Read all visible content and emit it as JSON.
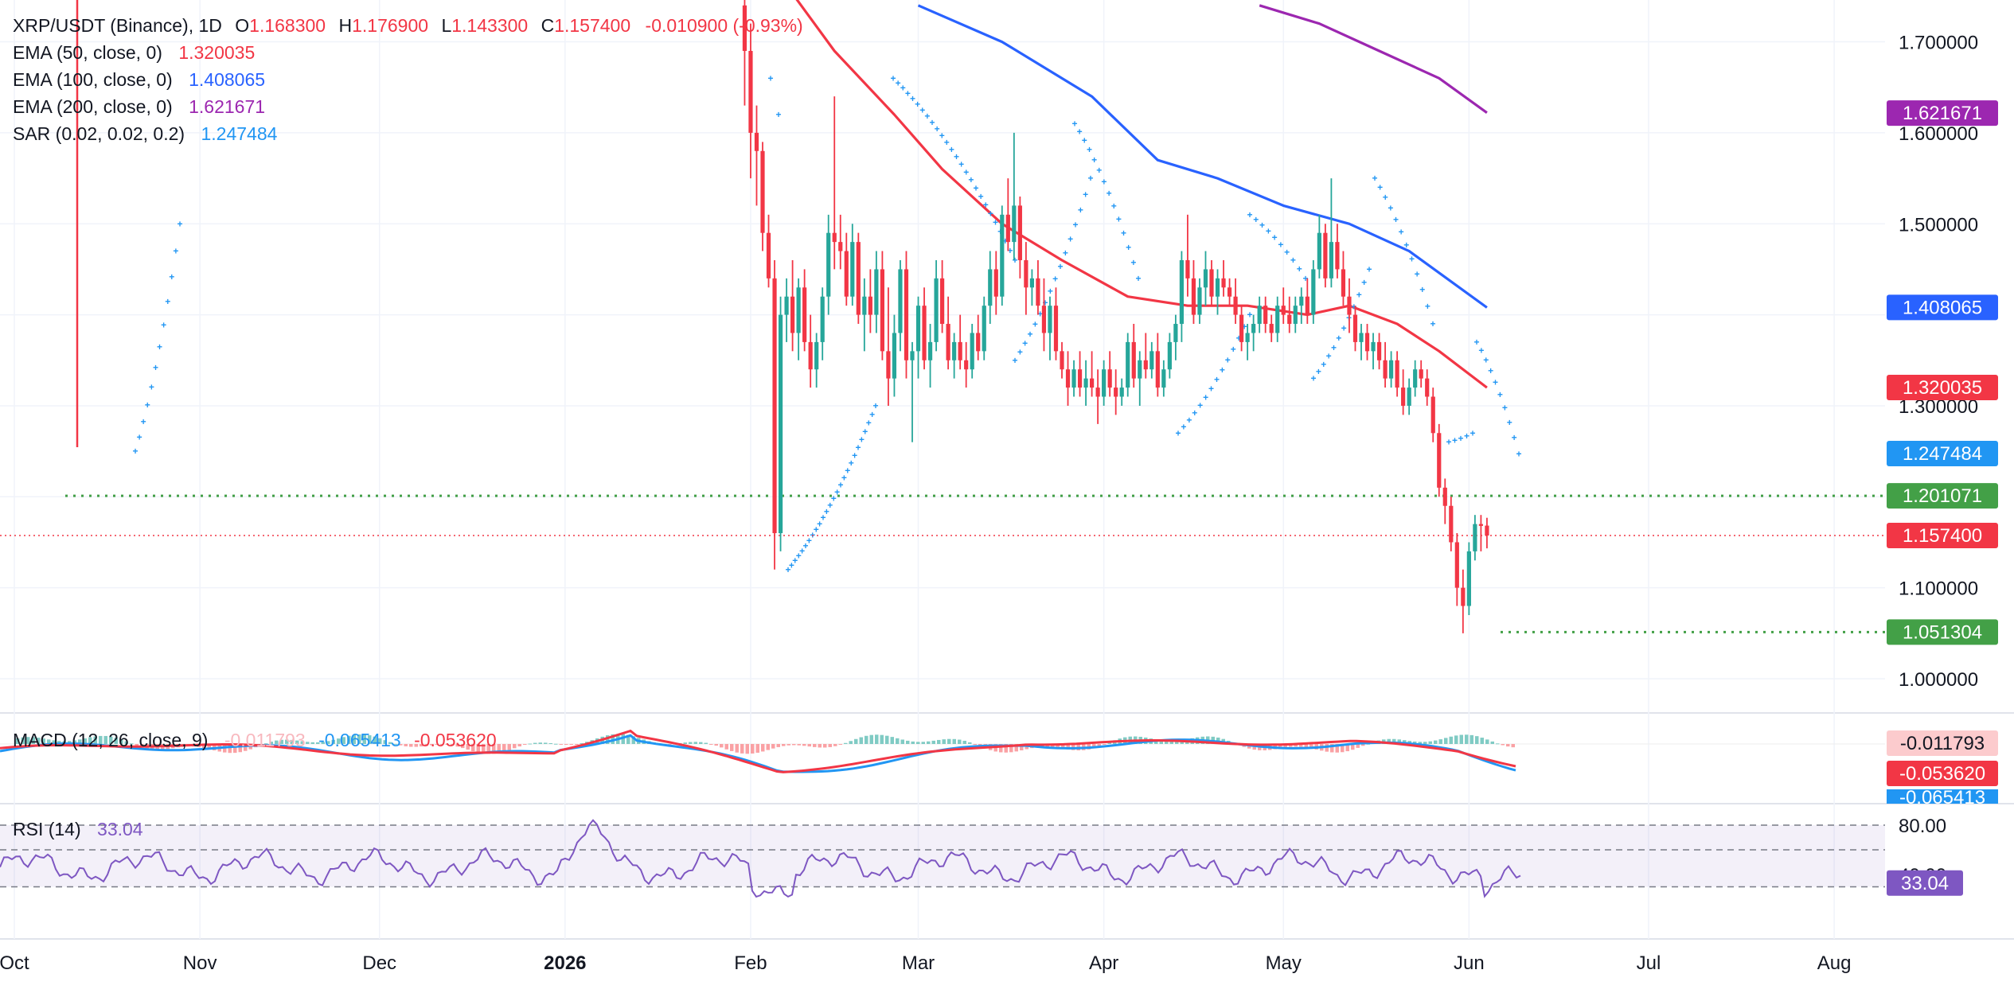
{
  "colors": {
    "up": "#26a69a",
    "down": "#f23645",
    "ema50": "#f23645",
    "ema100": "#2962ff",
    "ema200": "#9c27b0",
    "sar": "#2196f3",
    "macd": "#2196f3",
    "signal": "#f23645",
    "rsi": "#7e57c2",
    "support": "#43a047",
    "text": "#131722",
    "axis": "#131722",
    "grid": "#f0f3fa"
  },
  "header": {
    "symbol": "XRP/USDT (Binance), 1D",
    "o_label": "O",
    "o_value": "1.168300",
    "h_label": "H",
    "h_value": "1.176900",
    "l_label": "L",
    "l_value": "1.143300",
    "c_label": "C",
    "c_value": "1.157400",
    "change": "-0.010900 (-0.93%)"
  },
  "legend": {
    "ema50_label": "EMA (50, close, 0)",
    "ema50_value": "1.320035",
    "ema100_label": "EMA (100, close, 0)",
    "ema100_value": "1.408065",
    "ema200_label": "EMA (200, close, 0)",
    "ema200_value": "1.621671",
    "sar_label": "SAR (0.02, 0.02, 0.2)",
    "sar_value": "1.247484"
  },
  "price_axis": {
    "ticks": [
      "1.700000",
      "1.600000",
      "1.500000",
      "1.300000",
      "1.100000",
      "1.000000"
    ],
    "badges": {
      "ema200": "1.621671",
      "ema100": "1.408065",
      "ema50": "1.320035",
      "sar": "1.247484",
      "resistance": "1.201071",
      "last": "1.157400",
      "support": "1.051304"
    }
  },
  "macd": {
    "label": "MACD (12, 26, close, 9)",
    "hist_value": "-0.011793",
    "macd_value": "-0.065413",
    "signal_value": "-0.053620"
  },
  "rsi": {
    "label": "RSI (14)",
    "value": "33.04",
    "tick_upper": "80.00",
    "tick_mid": "40.00"
  },
  "time_axis": {
    "labels": [
      "Oct",
      "Nov",
      "Dec",
      "2026",
      "Feb",
      "Mar",
      "Apr",
      "May",
      "Jun",
      "Jul",
      "Aug"
    ]
  },
  "chart_data": {
    "type": "candlestick",
    "title": "XRP/USDT (Binance), 1D",
    "ohlc_last": {
      "open": 1.1683,
      "high": 1.1769,
      "low": 1.1433,
      "close": 1.1574
    },
    "price_range": [
      0.96,
      1.74
    ],
    "levels": {
      "resistance": 1.201071,
      "support": 1.051304,
      "last": 1.1574
    },
    "indicators": {
      "ema50": 1.320035,
      "ema100": 1.408065,
      "ema200": 1.621671,
      "sar": 1.247484,
      "macd": -0.065413,
      "macd_signal": -0.05362,
      "macd_hist": -0.011793,
      "rsi": 33.04
    },
    "candles": [
      {
        "date": "2026-01-31",
        "open": 1.74,
        "high": 1.79,
        "low": 1.63,
        "close": 1.69
      },
      {
        "date": "2026-02-01",
        "open": 1.69,
        "high": 1.72,
        "low": 1.55,
        "close": 1.6
      },
      {
        "date": "2026-02-02",
        "open": 1.6,
        "high": 1.63,
        "low": 1.52,
        "close": 1.58
      },
      {
        "date": "2026-02-03",
        "open": 1.58,
        "high": 1.59,
        "low": 1.47,
        "close": 1.49
      },
      {
        "date": "2026-02-04",
        "open": 1.49,
        "high": 1.51,
        "low": 1.43,
        "close": 1.44
      },
      {
        "date": "2026-02-05",
        "open": 1.44,
        "high": 1.46,
        "low": 1.12,
        "close": 1.16
      },
      {
        "date": "2026-02-06",
        "open": 1.16,
        "high": 1.42,
        "low": 1.14,
        "close": 1.4
      },
      {
        "date": "2026-02-07",
        "open": 1.4,
        "high": 1.44,
        "low": 1.37,
        "close": 1.42
      },
      {
        "date": "2026-02-08",
        "open": 1.42,
        "high": 1.46,
        "low": 1.36,
        "close": 1.38
      },
      {
        "date": "2026-02-09",
        "open": 1.38,
        "high": 1.44,
        "low": 1.35,
        "close": 1.43
      },
      {
        "date": "2026-02-10",
        "open": 1.43,
        "high": 1.45,
        "low": 1.36,
        "close": 1.37
      },
      {
        "date": "2026-02-11",
        "open": 1.37,
        "high": 1.4,
        "low": 1.32,
        "close": 1.34
      },
      {
        "date": "2026-02-12",
        "open": 1.34,
        "high": 1.38,
        "low": 1.32,
        "close": 1.37
      },
      {
        "date": "2026-02-13",
        "open": 1.37,
        "high": 1.43,
        "low": 1.35,
        "close": 1.42
      },
      {
        "date": "2026-02-14",
        "open": 1.42,
        "high": 1.51,
        "low": 1.4,
        "close": 1.49
      },
      {
        "date": "2026-02-15",
        "open": 1.49,
        "high": 1.64,
        "low": 1.45,
        "close": 1.48
      },
      {
        "date": "2026-02-16",
        "open": 1.48,
        "high": 1.51,
        "low": 1.45,
        "close": 1.47
      },
      {
        "date": "2026-02-17",
        "open": 1.47,
        "high": 1.49,
        "low": 1.41,
        "close": 1.42
      },
      {
        "date": "2026-02-18",
        "open": 1.42,
        "high": 1.5,
        "low": 1.41,
        "close": 1.48
      },
      {
        "date": "2026-02-19",
        "open": 1.48,
        "high": 1.49,
        "low": 1.39,
        "close": 1.4
      },
      {
        "date": "2026-02-20",
        "open": 1.4,
        "high": 1.44,
        "low": 1.36,
        "close": 1.42
      },
      {
        "date": "2026-02-21",
        "open": 1.42,
        "high": 1.45,
        "low": 1.38,
        "close": 1.4
      },
      {
        "date": "2026-02-22",
        "open": 1.4,
        "high": 1.47,
        "low": 1.38,
        "close": 1.45
      },
      {
        "date": "2026-02-23",
        "open": 1.45,
        "high": 1.47,
        "low": 1.35,
        "close": 1.36
      },
      {
        "date": "2026-02-24",
        "open": 1.36,
        "high": 1.43,
        "low": 1.3,
        "close": 1.33
      },
      {
        "date": "2026-02-25",
        "open": 1.33,
        "high": 1.4,
        "low": 1.31,
        "close": 1.38
      },
      {
        "date": "2026-02-26",
        "open": 1.38,
        "high": 1.46,
        "low": 1.36,
        "close": 1.45
      },
      {
        "date": "2026-02-27",
        "open": 1.45,
        "high": 1.47,
        "low": 1.33,
        "close": 1.35
      },
      {
        "date": "2026-02-28",
        "open": 1.35,
        "high": 1.37,
        "low": 1.26,
        "close": 1.36
      },
      {
        "date": "2026-03-01",
        "open": 1.36,
        "high": 1.42,
        "low": 1.33,
        "close": 1.41
      },
      {
        "date": "2026-03-02",
        "open": 1.41,
        "high": 1.43,
        "low": 1.34,
        "close": 1.35
      },
      {
        "date": "2026-03-03",
        "open": 1.35,
        "high": 1.39,
        "low": 1.32,
        "close": 1.37
      },
      {
        "date": "2026-03-04",
        "open": 1.37,
        "high": 1.46,
        "low": 1.36,
        "close": 1.44
      },
      {
        "date": "2026-03-05",
        "open": 1.44,
        "high": 1.46,
        "low": 1.38,
        "close": 1.39
      },
      {
        "date": "2026-03-06",
        "open": 1.39,
        "high": 1.42,
        "low": 1.34,
        "close": 1.35
      },
      {
        "date": "2026-03-07",
        "open": 1.35,
        "high": 1.38,
        "low": 1.33,
        "close": 1.37
      },
      {
        "date": "2026-03-08",
        "open": 1.37,
        "high": 1.4,
        "low": 1.34,
        "close": 1.35
      },
      {
        "date": "2026-03-09",
        "open": 1.35,
        "high": 1.37,
        "low": 1.32,
        "close": 1.34
      },
      {
        "date": "2026-03-10",
        "open": 1.34,
        "high": 1.39,
        "low": 1.33,
        "close": 1.38
      },
      {
        "date": "2026-03-11",
        "open": 1.38,
        "high": 1.4,
        "low": 1.35,
        "close": 1.36
      },
      {
        "date": "2026-03-12",
        "open": 1.36,
        "high": 1.42,
        "low": 1.35,
        "close": 1.41
      },
      {
        "date": "2026-03-13",
        "open": 1.41,
        "high": 1.47,
        "low": 1.39,
        "close": 1.45
      },
      {
        "date": "2026-03-14",
        "open": 1.45,
        "high": 1.47,
        "low": 1.4,
        "close": 1.42
      },
      {
        "date": "2026-03-15",
        "open": 1.42,
        "high": 1.52,
        "low": 1.41,
        "close": 1.51
      },
      {
        "date": "2026-03-16",
        "open": 1.51,
        "high": 1.55,
        "low": 1.47,
        "close": 1.48
      },
      {
        "date": "2026-03-17",
        "open": 1.48,
        "high": 1.6,
        "low": 1.46,
        "close": 1.52
      },
      {
        "date": "2026-03-18",
        "open": 1.52,
        "high": 1.53,
        "low": 1.44,
        "close": 1.46
      },
      {
        "date": "2026-03-19",
        "open": 1.46,
        "high": 1.48,
        "low": 1.4,
        "close": 1.43
      },
      {
        "date": "2026-03-20",
        "open": 1.43,
        "high": 1.45,
        "low": 1.41,
        "close": 1.44
      },
      {
        "date": "2026-03-21",
        "open": 1.44,
        "high": 1.46,
        "low": 1.4,
        "close": 1.41
      },
      {
        "date": "2026-03-22",
        "open": 1.41,
        "high": 1.44,
        "low": 1.36,
        "close": 1.38
      },
      {
        "date": "2026-03-23",
        "open": 1.38,
        "high": 1.42,
        "low": 1.35,
        "close": 1.41
      },
      {
        "date": "2026-03-24",
        "open": 1.41,
        "high": 1.43,
        "low": 1.35,
        "close": 1.36
      },
      {
        "date": "2026-03-25",
        "open": 1.36,
        "high": 1.37,
        "low": 1.33,
        "close": 1.34
      },
      {
        "date": "2026-03-26",
        "open": 1.34,
        "high": 1.36,
        "low": 1.3,
        "close": 1.32
      },
      {
        "date": "2026-03-27",
        "open": 1.32,
        "high": 1.35,
        "low": 1.31,
        "close": 1.34
      },
      {
        "date": "2026-03-28",
        "open": 1.34,
        "high": 1.36,
        "low": 1.31,
        "close": 1.32
      },
      {
        "date": "2026-03-29",
        "open": 1.32,
        "high": 1.35,
        "low": 1.3,
        "close": 1.33
      },
      {
        "date": "2026-03-30",
        "open": 1.33,
        "high": 1.36,
        "low": 1.31,
        "close": 1.32
      },
      {
        "date": "2026-03-31",
        "open": 1.32,
        "high": 1.34,
        "low": 1.28,
        "close": 1.31
      },
      {
        "date": "2026-04-01",
        "open": 1.31,
        "high": 1.35,
        "low": 1.3,
        "close": 1.34
      },
      {
        "date": "2026-04-02",
        "open": 1.34,
        "high": 1.36,
        "low": 1.31,
        "close": 1.32
      },
      {
        "date": "2026-04-03",
        "open": 1.32,
        "high": 1.34,
        "low": 1.29,
        "close": 1.31
      },
      {
        "date": "2026-04-04",
        "open": 1.31,
        "high": 1.33,
        "low": 1.3,
        "close": 1.32
      },
      {
        "date": "2026-04-05",
        "open": 1.32,
        "high": 1.38,
        "low": 1.31,
        "close": 1.37
      },
      {
        "date": "2026-04-06",
        "open": 1.37,
        "high": 1.39,
        "low": 1.32,
        "close": 1.33
      },
      {
        "date": "2026-04-07",
        "open": 1.33,
        "high": 1.36,
        "low": 1.3,
        "close": 1.35
      },
      {
        "date": "2026-04-08",
        "open": 1.35,
        "high": 1.38,
        "low": 1.33,
        "close": 1.34
      },
      {
        "date": "2026-04-09",
        "open": 1.34,
        "high": 1.37,
        "low": 1.33,
        "close": 1.36
      },
      {
        "date": "2026-04-10",
        "open": 1.36,
        "high": 1.38,
        "low": 1.31,
        "close": 1.32
      },
      {
        "date": "2026-04-11",
        "open": 1.32,
        "high": 1.35,
        "low": 1.31,
        "close": 1.34
      },
      {
        "date": "2026-04-12",
        "open": 1.34,
        "high": 1.38,
        "low": 1.33,
        "close": 1.37
      },
      {
        "date": "2026-04-13",
        "open": 1.37,
        "high": 1.4,
        "low": 1.35,
        "close": 1.39
      },
      {
        "date": "2026-04-14",
        "open": 1.39,
        "high": 1.47,
        "low": 1.37,
        "close": 1.46
      },
      {
        "date": "2026-04-15",
        "open": 1.46,
        "high": 1.51,
        "low": 1.42,
        "close": 1.44
      },
      {
        "date": "2026-04-16",
        "open": 1.44,
        "high": 1.46,
        "low": 1.39,
        "close": 1.4
      },
      {
        "date": "2026-04-17",
        "open": 1.4,
        "high": 1.44,
        "low": 1.39,
        "close": 1.43
      },
      {
        "date": "2026-04-18",
        "open": 1.43,
        "high": 1.47,
        "low": 1.41,
        "close": 1.45
      },
      {
        "date": "2026-04-19",
        "open": 1.45,
        "high": 1.46,
        "low": 1.41,
        "close": 1.42
      },
      {
        "date": "2026-04-20",
        "open": 1.42,
        "high": 1.45,
        "low": 1.4,
        "close": 1.44
      },
      {
        "date": "2026-04-21",
        "open": 1.44,
        "high": 1.46,
        "low": 1.42,
        "close": 1.43
      },
      {
        "date": "2026-04-22",
        "open": 1.43,
        "high": 1.44,
        "low": 1.41,
        "close": 1.42
      },
      {
        "date": "2026-04-23",
        "open": 1.42,
        "high": 1.44,
        "low": 1.39,
        "close": 1.4
      },
      {
        "date": "2026-04-24",
        "open": 1.4,
        "high": 1.41,
        "low": 1.36,
        "close": 1.37
      },
      {
        "date": "2026-04-25",
        "open": 1.37,
        "high": 1.39,
        "low": 1.35,
        "close": 1.38
      },
      {
        "date": "2026-04-26",
        "open": 1.38,
        "high": 1.4,
        "low": 1.36,
        "close": 1.39
      },
      {
        "date": "2026-04-27",
        "open": 1.39,
        "high": 1.42,
        "low": 1.38,
        "close": 1.41
      },
      {
        "date": "2026-04-28",
        "open": 1.41,
        "high": 1.42,
        "low": 1.38,
        "close": 1.39
      },
      {
        "date": "2026-04-29",
        "open": 1.39,
        "high": 1.4,
        "low": 1.37,
        "close": 1.38
      },
      {
        "date": "2026-04-30",
        "open": 1.38,
        "high": 1.42,
        "low": 1.37,
        "close": 1.41
      },
      {
        "date": "2026-05-01",
        "open": 1.41,
        "high": 1.43,
        "low": 1.39,
        "close": 1.4
      },
      {
        "date": "2026-05-02",
        "open": 1.4,
        "high": 1.42,
        "low": 1.38,
        "close": 1.39
      },
      {
        "date": "2026-05-03",
        "open": 1.39,
        "high": 1.42,
        "low": 1.38,
        "close": 1.41
      },
      {
        "date": "2026-05-04",
        "open": 1.41,
        "high": 1.43,
        "low": 1.39,
        "close": 1.42
      },
      {
        "date": "2026-05-05",
        "open": 1.42,
        "high": 1.44,
        "low": 1.39,
        "close": 1.4
      },
      {
        "date": "2026-05-06",
        "open": 1.4,
        "high": 1.46,
        "low": 1.39,
        "close": 1.45
      },
      {
        "date": "2026-05-07",
        "open": 1.45,
        "high": 1.51,
        "low": 1.44,
        "close": 1.49
      },
      {
        "date": "2026-05-08",
        "open": 1.49,
        "high": 1.5,
        "low": 1.43,
        "close": 1.44
      },
      {
        "date": "2026-05-09",
        "open": 1.44,
        "high": 1.55,
        "low": 1.43,
        "close": 1.48
      },
      {
        "date": "2026-05-10",
        "open": 1.48,
        "high": 1.5,
        "low": 1.44,
        "close": 1.45
      },
      {
        "date": "2026-05-11",
        "open": 1.45,
        "high": 1.47,
        "low": 1.41,
        "close": 1.42
      },
      {
        "date": "2026-05-12",
        "open": 1.42,
        "high": 1.44,
        "low": 1.38,
        "close": 1.4
      },
      {
        "date": "2026-05-13",
        "open": 1.4,
        "high": 1.41,
        "low": 1.36,
        "close": 1.37
      },
      {
        "date": "2026-05-14",
        "open": 1.37,
        "high": 1.39,
        "low": 1.35,
        "close": 1.38
      },
      {
        "date": "2026-05-15",
        "open": 1.38,
        "high": 1.39,
        "low": 1.35,
        "close": 1.36
      },
      {
        "date": "2026-05-16",
        "open": 1.36,
        "high": 1.38,
        "low": 1.34,
        "close": 1.37
      },
      {
        "date": "2026-05-17",
        "open": 1.37,
        "high": 1.38,
        "low": 1.34,
        "close": 1.35
      },
      {
        "date": "2026-05-18",
        "open": 1.35,
        "high": 1.37,
        "low": 1.32,
        "close": 1.33
      },
      {
        "date": "2026-05-19",
        "open": 1.33,
        "high": 1.36,
        "low": 1.32,
        "close": 1.35
      },
      {
        "date": "2026-05-20",
        "open": 1.35,
        "high": 1.36,
        "low": 1.31,
        "close": 1.32
      },
      {
        "date": "2026-05-21",
        "open": 1.32,
        "high": 1.34,
        "low": 1.29,
        "close": 1.3
      },
      {
        "date": "2026-05-22",
        "open": 1.3,
        "high": 1.33,
        "low": 1.29,
        "close": 1.32
      },
      {
        "date": "2026-05-23",
        "open": 1.32,
        "high": 1.35,
        "low": 1.31,
        "close": 1.34
      },
      {
        "date": "2026-05-24",
        "open": 1.34,
        "high": 1.35,
        "low": 1.32,
        "close": 1.33
      },
      {
        "date": "2026-05-25",
        "open": 1.33,
        "high": 1.34,
        "low": 1.3,
        "close": 1.31
      },
      {
        "date": "2026-05-26",
        "open": 1.31,
        "high": 1.32,
        "low": 1.26,
        "close": 1.27
      },
      {
        "date": "2026-05-27",
        "open": 1.27,
        "high": 1.28,
        "low": 1.2,
        "close": 1.21
      },
      {
        "date": "2026-05-28",
        "open": 1.21,
        "high": 1.22,
        "low": 1.17,
        "close": 1.19
      },
      {
        "date": "2026-05-29",
        "open": 1.19,
        "high": 1.2,
        "low": 1.14,
        "close": 1.15
      },
      {
        "date": "2026-05-30",
        "open": 1.15,
        "high": 1.16,
        "low": 1.08,
        "close": 1.1
      },
      {
        "date": "2026-05-31",
        "open": 1.1,
        "high": 1.12,
        "low": 1.05,
        "close": 1.08
      },
      {
        "date": "2026-06-01",
        "open": 1.08,
        "high": 1.15,
        "low": 1.07,
        "close": 1.14
      },
      {
        "date": "2026-06-02",
        "open": 1.14,
        "high": 1.18,
        "low": 1.13,
        "close": 1.17
      },
      {
        "date": "2026-06-03",
        "open": 1.17,
        "high": 1.18,
        "low": 1.14,
        "close": 1.168
      },
      {
        "date": "2026-06-04",
        "open": 1.1683,
        "high": 1.1769,
        "low": 1.1433,
        "close": 1.1574
      }
    ]
  }
}
